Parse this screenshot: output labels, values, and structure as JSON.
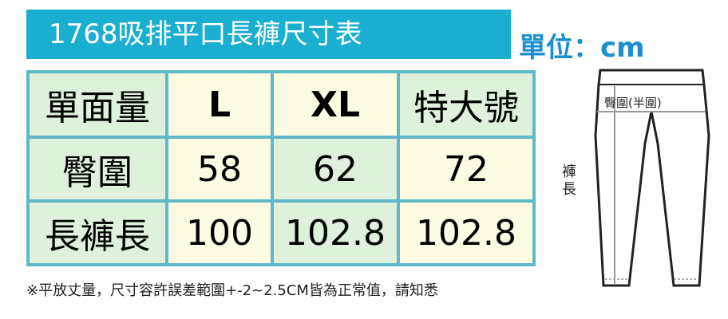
{
  "title": "1768吸排平口長褲尺寸表",
  "unit": "單位：cm",
  "table": {
    "header": [
      "單面量",
      "L",
      "XL",
      "特大號"
    ],
    "rows": [
      [
        "臀圍",
        58,
        62,
        72
      ],
      [
        "長褲長",
        100,
        102.8,
        102.8
      ]
    ]
  },
  "note": "※平放丈量，尺寸容許誤差範圍+-2~2.5CM皆為正常值，請知悉",
  "diagram": {
    "hip_label": "臀圍(半圍)",
    "length_label": "褲長"
  }
}
